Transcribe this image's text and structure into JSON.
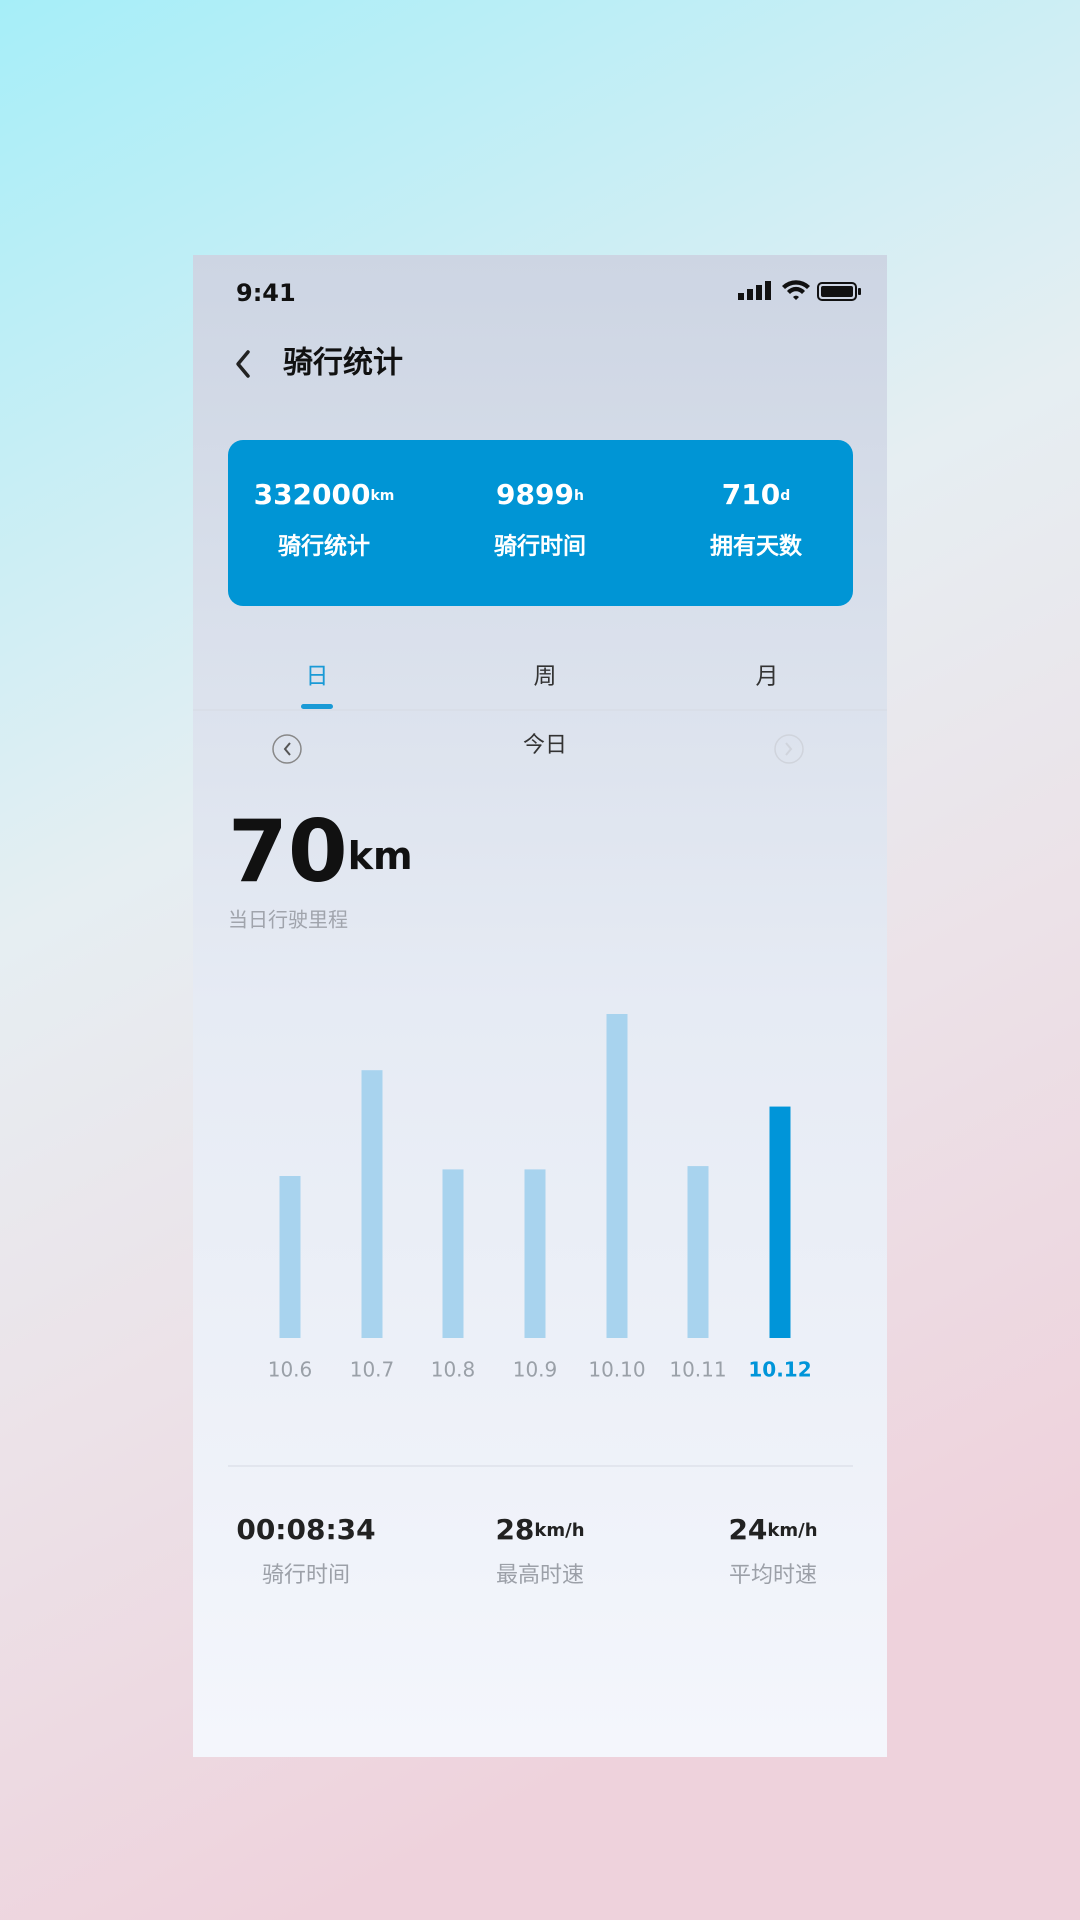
{
  "status_bar": {
    "time": "9:41"
  },
  "header": {
    "title": "骑行统计"
  },
  "summary": [
    {
      "value": 332000,
      "unit": "km",
      "label": "骑行统计"
    },
    {
      "value": 9899,
      "unit": "h",
      "label": "骑行时间"
    },
    {
      "value": 710,
      "unit": "d",
      "label": "拥有天数"
    }
  ],
  "tabs": {
    "items": [
      "日",
      "周",
      "月"
    ],
    "active": 0
  },
  "period": "今日",
  "today": {
    "value": 70,
    "unit": "km",
    "label": "当日行驶里程"
  },
  "chart_data": {
    "type": "bar",
    "categories": [
      "10.6",
      "10.7",
      "10.8",
      "10.9",
      "10.10",
      "10.11",
      "10.12"
    ],
    "values": [
      49,
      81,
      51,
      51,
      98,
      52,
      70
    ],
    "color": "#a8d3ee",
    "highlight_color": "#0095d9",
    "highlight_index": 6
  },
  "details": [
    {
      "value": "00:08:34",
      "label": "骑行时间"
    },
    {
      "value": 28,
      "unit": "km/h",
      "label": "最高时速"
    },
    {
      "value": 24,
      "unit": "km/h",
      "label": "平均时速"
    }
  ]
}
